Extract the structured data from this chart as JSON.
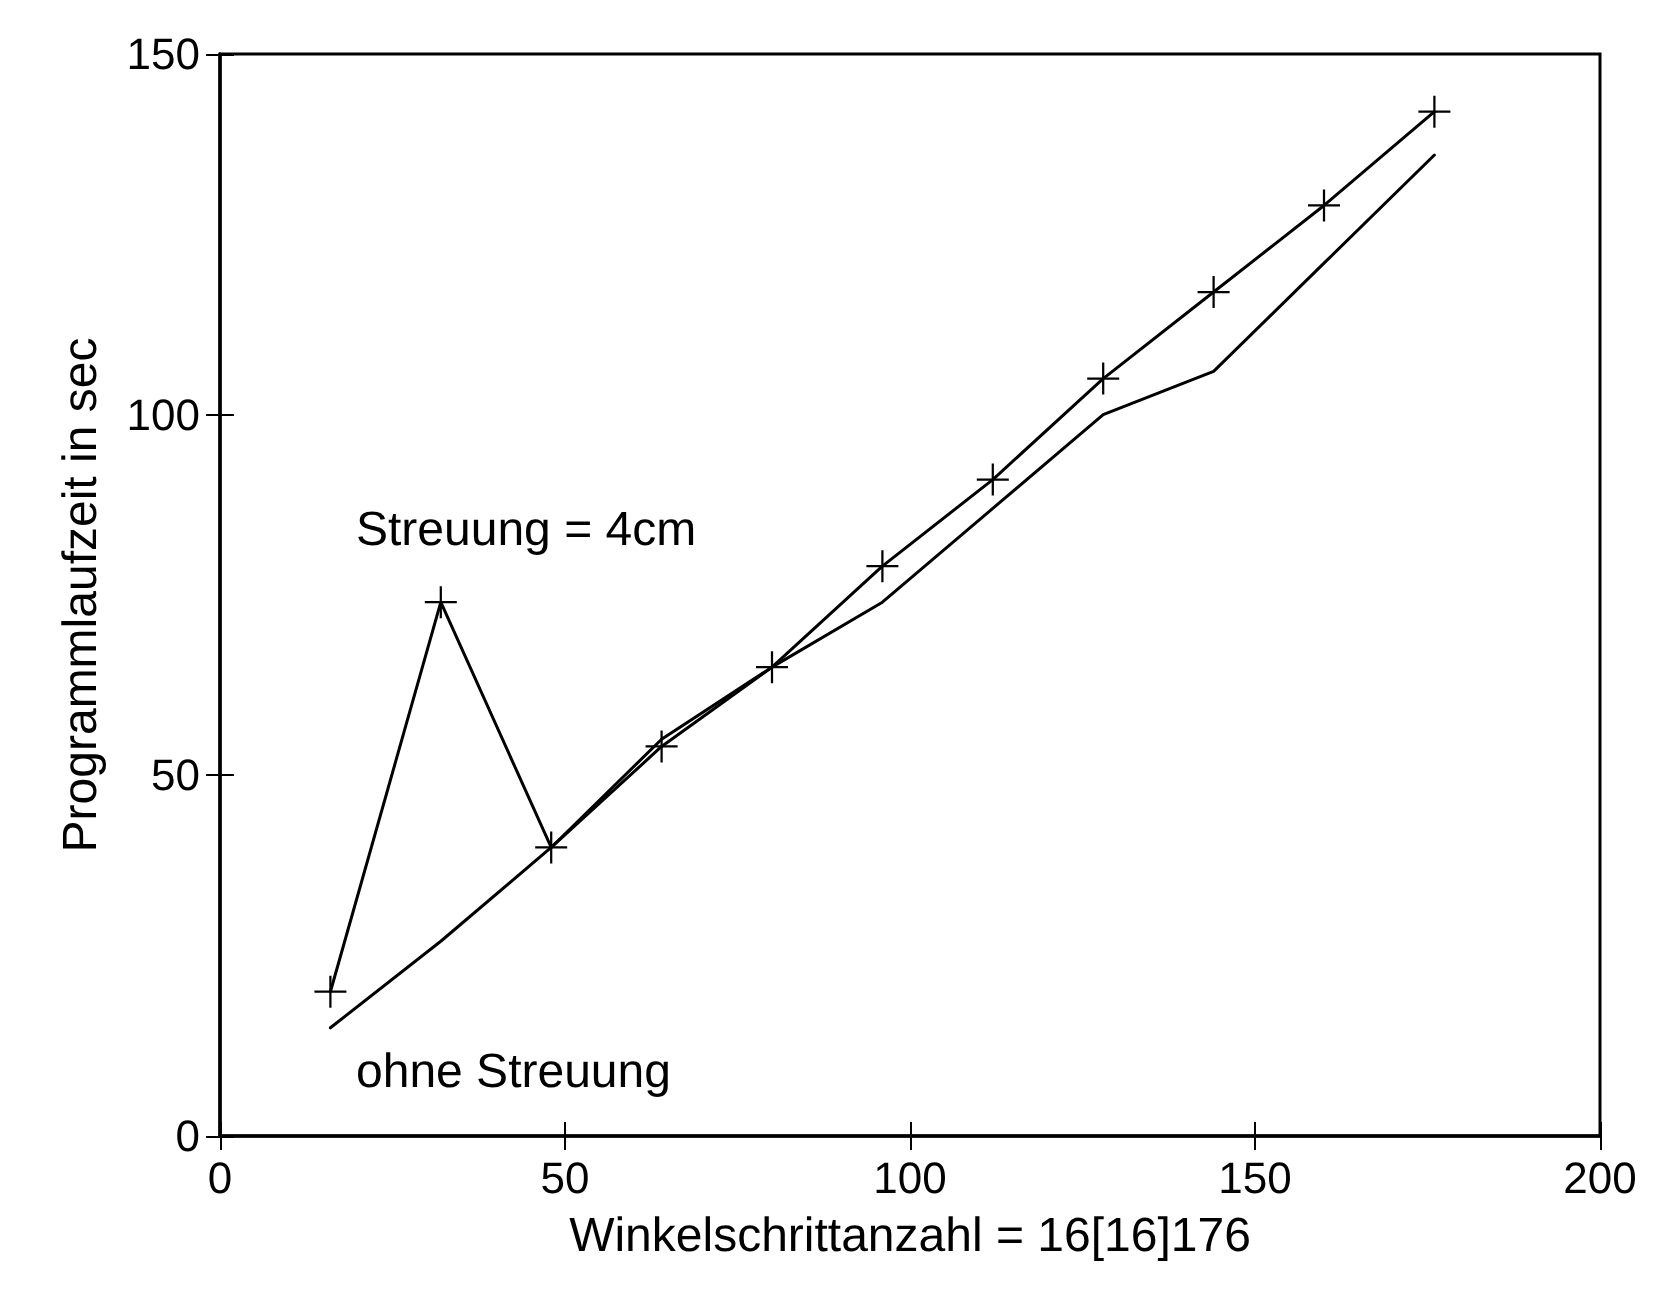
{
  "chart_data": {
    "type": "line",
    "xlabel": "Winkelschrittanzahl = 16[16]176",
    "ylabel": "Programmlaufzeit in sec",
    "xlim": [
      0,
      200
    ],
    "xticks": [
      0,
      50,
      100,
      150,
      200
    ],
    "ylim": [
      0,
      150
    ],
    "yticks": [
      0,
      50,
      100,
      150
    ],
    "grid": false,
    "series": [
      {
        "color": "#000000",
        "marker": "cross",
        "x": [
          16,
          32,
          48,
          64,
          80,
          96,
          112,
          128,
          144,
          160,
          176
        ],
        "values": [
          20,
          74,
          40,
          54,
          65,
          79,
          91,
          105,
          117,
          129,
          142
        ]
      },
      {
        "color": "#000000",
        "marker": "none",
        "x": [
          16,
          32,
          48,
          64,
          80,
          96,
          112,
          128,
          144,
          160,
          176
        ],
        "values": [
          15,
          27,
          40,
          55,
          65,
          74,
          87,
          100,
          106,
          121,
          136
        ]
      }
    ],
    "annotations": [
      "Streuung = 4cm",
      "ohne Streuung"
    ]
  }
}
